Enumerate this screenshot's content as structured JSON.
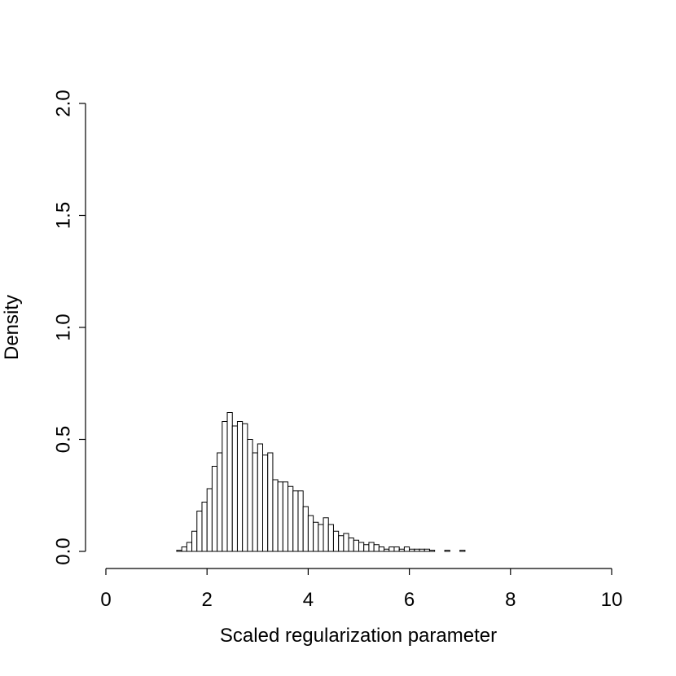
{
  "chart_data": {
    "type": "histogram",
    "xlabel": "Scaled regularization parameter",
    "ylabel": "Density",
    "bins": [
      0,
      0.1,
      0.2,
      0.3,
      0.4,
      0.5,
      0.6,
      0.7,
      0.8,
      0.9,
      1,
      1.1,
      1.2,
      1.3,
      1.4,
      1.5,
      1.6,
      1.7,
      1.8,
      1.9,
      2,
      2.1,
      2.2,
      2.3,
      2.4,
      2.5,
      2.6,
      2.7,
      2.8,
      2.9,
      3,
      3.1,
      3.2,
      3.3,
      3.4,
      3.5,
      3.6,
      3.7,
      3.8,
      3.9,
      4,
      4.1,
      4.2,
      4.3,
      4.4,
      4.5,
      4.6,
      4.7,
      4.8,
      4.9,
      5,
      5.1,
      5.2,
      5.3,
      5.4,
      5.5,
      5.6,
      5.7,
      5.8,
      5.9,
      6,
      6.1,
      6.2,
      6.3,
      6.4,
      6.5,
      6.6,
      6.7,
      6.8,
      6.9,
      7,
      7.1,
      7.2,
      7.3,
      7.4,
      7.5,
      7.6,
      7.7,
      7.8,
      7.9,
      8,
      8.1,
      8.2,
      8.3,
      8.4,
      8.5,
      8.6,
      8.7,
      8.8,
      8.9,
      9,
      9.1,
      9.2,
      9.3,
      9.4,
      9.5,
      9.6,
      9.7,
      9.8,
      9.9,
      10
    ],
    "values": [
      0,
      0,
      0,
      0,
      0,
      0,
      0,
      0,
      0,
      0,
      0,
      0,
      0,
      0,
      0.005,
      0.02,
      0.04,
      0.09,
      0.18,
      0.22,
      0.28,
      0.38,
      0.44,
      0.58,
      0.62,
      0.56,
      0.58,
      0.57,
      0.5,
      0.44,
      0.48,
      0.43,
      0.44,
      0.32,
      0.31,
      0.31,
      0.29,
      0.27,
      0.27,
      0.2,
      0.16,
      0.13,
      0.12,
      0.15,
      0.12,
      0.09,
      0.07,
      0.08,
      0.06,
      0.05,
      0.04,
      0.03,
      0.04,
      0.03,
      0.02,
      0.01,
      0.02,
      0.02,
      0.01,
      0.02,
      0.01,
      0.01,
      0.01,
      0.01,
      0.005,
      0,
      0,
      0.005,
      0,
      0,
      0.005,
      0,
      0,
      0,
      0,
      0,
      0,
      0,
      0,
      0,
      0,
      0,
      0,
      0,
      0,
      0,
      0,
      0,
      0,
      0,
      0,
      0,
      0,
      0,
      0,
      0,
      0,
      0,
      0,
      0
    ],
    "color": "#ffffff",
    "xlim": [
      0,
      10
    ],
    "xticks": [
      0,
      2,
      4,
      6,
      8,
      10
    ],
    "ylim": [
      0,
      2
    ],
    "yticks": [
      {
        "value": 0,
        "label": "0.0"
      },
      0.5,
      {
        "value": 1,
        "label": "1.0"
      },
      1.5,
      {
        "value": 2,
        "label": "2.0"
      }
    ]
  }
}
